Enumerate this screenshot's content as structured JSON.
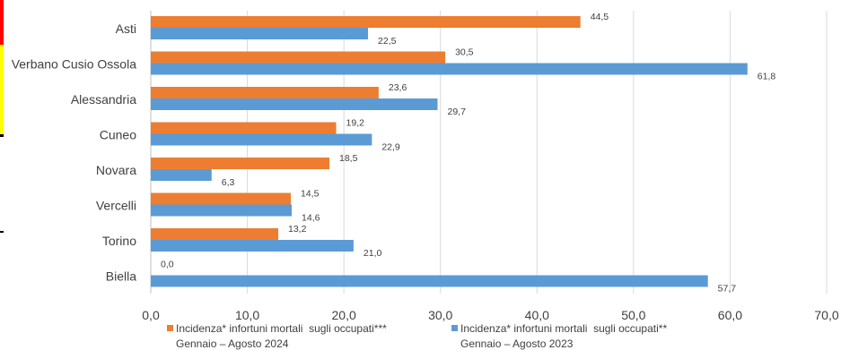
{
  "chart_data": {
    "type": "bar",
    "orientation": "horizontal",
    "categories": [
      "Asti",
      "Verbano Cusio Ossola",
      "Alessandria",
      "Cuneo",
      "Novara",
      "Vercelli",
      "Torino",
      "Biella"
    ],
    "series": [
      {
        "name": "Incidenza* infortuni mortali  sugli occupati***",
        "period": "Gennaio – Agosto 2024",
        "color": "#ED7D31",
        "values": [
          44.5,
          30.5,
          23.6,
          19.2,
          18.5,
          14.5,
          13.2,
          0.0
        ],
        "labels": [
          "44,5",
          "30,5",
          "23,6",
          "19,2",
          "18,5",
          "14,5",
          "13,2",
          "0,0"
        ]
      },
      {
        "name": "Incidenza* infortuni mortali  sugli occupati**",
        "period": "Gennaio – Agosto 2023",
        "color": "#5B9BD5",
        "values": [
          22.5,
          61.8,
          29.7,
          22.9,
          6.3,
          14.6,
          21.0,
          57.7
        ],
        "labels": [
          "22,5",
          "61,8",
          "29,7",
          "22,9",
          "6,3",
          "14,6",
          "21,0",
          "57,7"
        ]
      }
    ],
    "xlim": [
      0,
      70
    ],
    "x_ticks": [
      0,
      10,
      20,
      30,
      40,
      50,
      60,
      70
    ],
    "x_tick_labels": [
      "0,0",
      "10,0",
      "20,0",
      "30,0",
      "40,0",
      "50,0",
      "60,0",
      "70,0"
    ],
    "grid": "vertical",
    "legend_position": "bottom"
  },
  "edge_strip_colors": [
    "#FF0000",
    "#FFFF00",
    "#000000"
  ]
}
